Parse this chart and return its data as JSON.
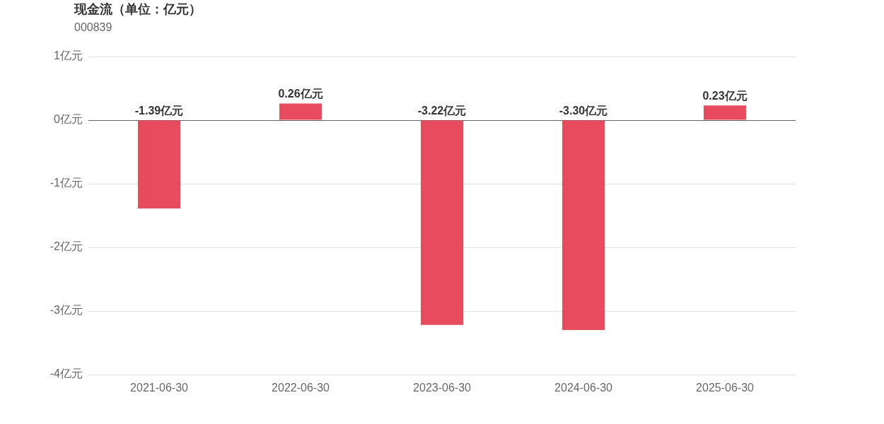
{
  "chart_data": {
    "type": "bar",
    "title": "现金流（单位：亿元）",
    "subtitle": "000839",
    "categories": [
      "2021-06-30",
      "2022-06-30",
      "2023-06-30",
      "2024-06-30",
      "2025-06-30"
    ],
    "values": [
      -1.39,
      0.26,
      -3.22,
      -3.3,
      0.23
    ],
    "value_labels": [
      "-1.39亿元",
      "0.26亿元",
      "-3.22亿元",
      "-3.30亿元",
      "0.23亿元"
    ],
    "color": "#e64b5e",
    "ylim": [
      -4,
      1
    ],
    "yticks": [
      {
        "value": -4,
        "label": "-4亿元"
      },
      {
        "value": -3,
        "label": "-3亿元"
      },
      {
        "value": -2,
        "label": "-2亿元"
      },
      {
        "value": -1,
        "label": "-1亿元"
      },
      {
        "value": 0,
        "label": "0亿元"
      },
      {
        "value": 1,
        "label": "1亿元"
      }
    ],
    "grid": "y",
    "legend": false
  }
}
